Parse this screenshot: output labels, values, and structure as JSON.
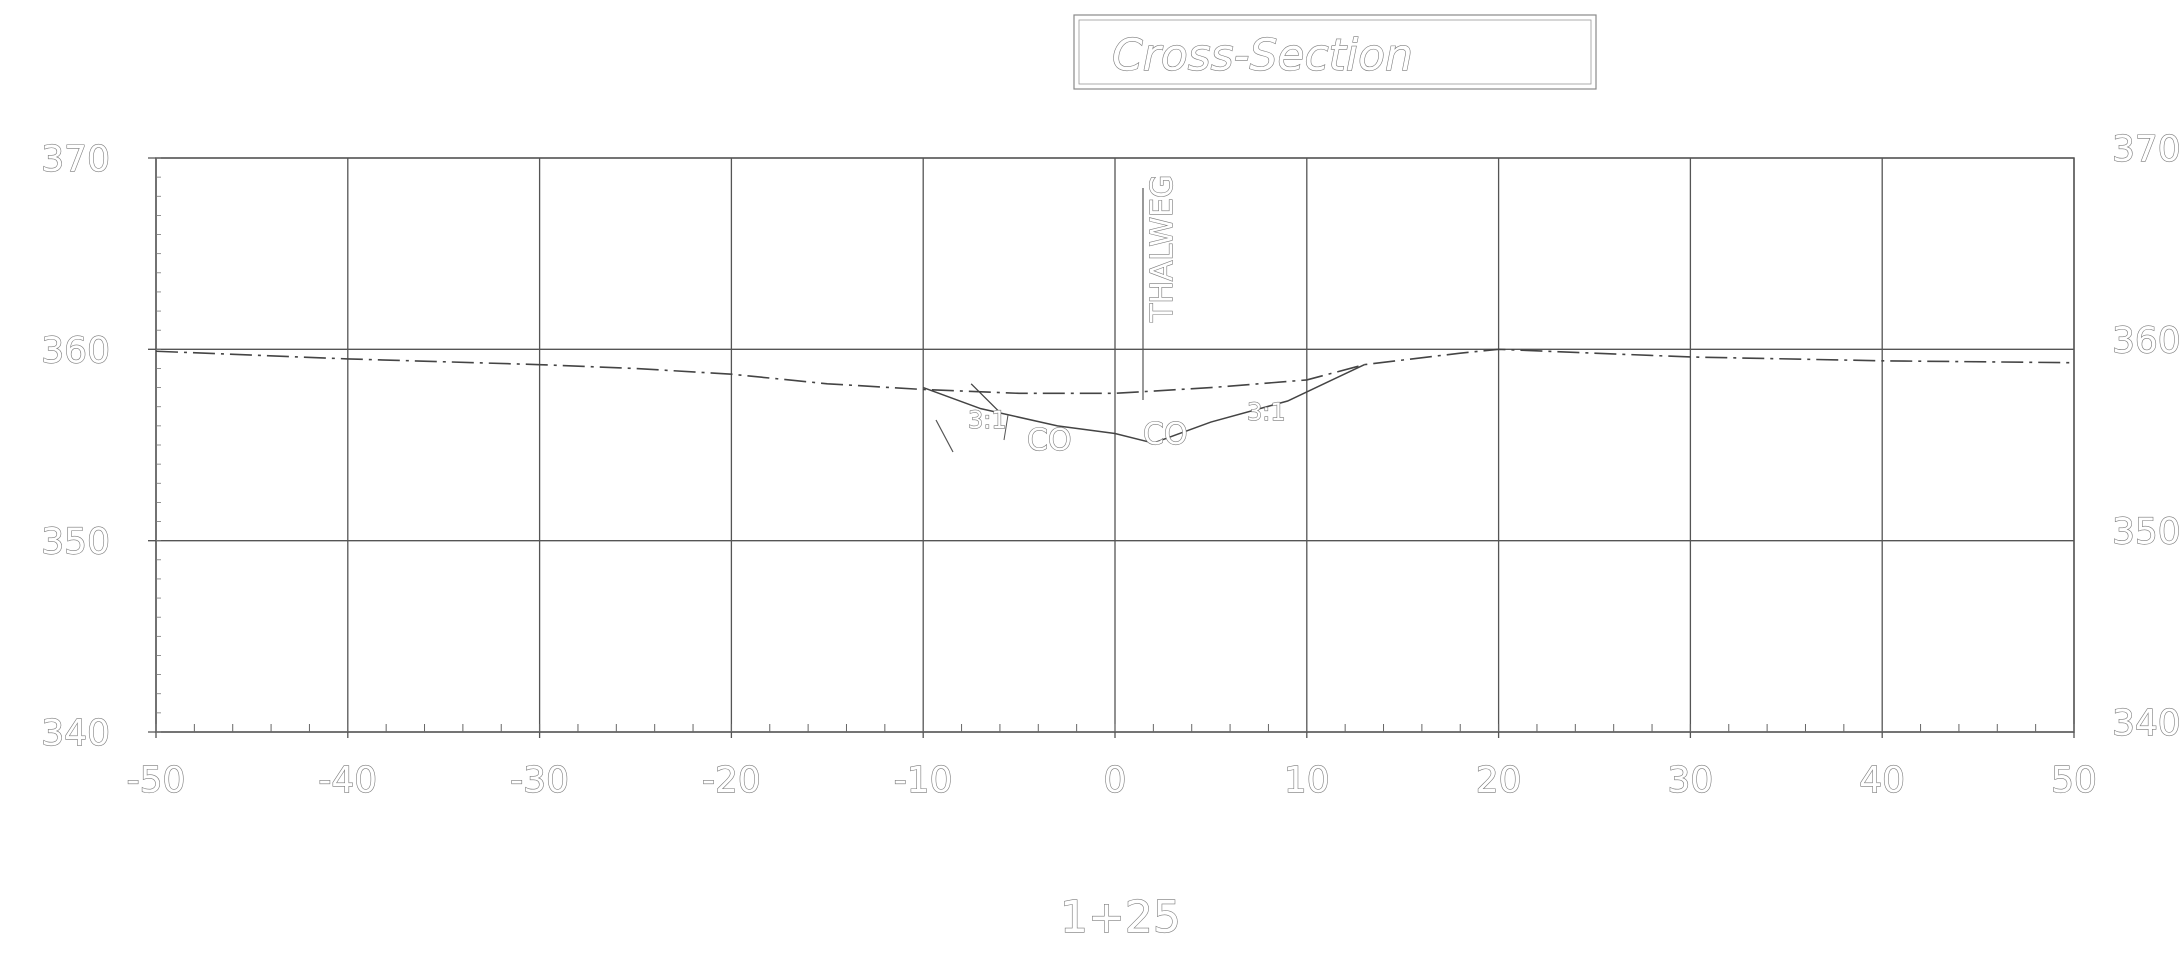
{
  "title": "Cross-Section",
  "station": "1+25",
  "thalweg_label": "THALWEG",
  "axes": {
    "x_ticks": [
      "-50",
      "-40",
      "-30",
      "-20",
      "-10",
      "0",
      "10",
      "20",
      "30",
      "40",
      "50"
    ],
    "y_ticks": [
      "340",
      "350",
      "360",
      "370"
    ],
    "xlim": [
      -50,
      50
    ],
    "ylim": [
      340,
      370
    ],
    "grid": true
  },
  "annotations": {
    "left_slope": "3:1",
    "right_slope": "3:1",
    "left_culvert": "CO",
    "right_culvert": "CO"
  },
  "colors": {
    "line": "#444444",
    "grid": "#555555",
    "background": "#ffffff"
  },
  "chart_data": {
    "type": "line",
    "x_range": [
      -50,
      50
    ],
    "y_range": [
      340,
      370
    ],
    "series": [
      {
        "x": [
          -50,
          -40,
          -30,
          -25,
          -20,
          -15,
          -10,
          -5,
          0,
          5,
          10,
          13,
          18,
          20,
          30,
          40,
          50
        ],
        "y": [
          359.9,
          359.5,
          359.2,
          359.0,
          358.7,
          358.2,
          357.9,
          357.7,
          357.7,
          358.0,
          358.4,
          359.2,
          359.8,
          360.0,
          359.6,
          359.4,
          359.3
        ]
      },
      {
        "x": [
          -10,
          -7,
          -3,
          0,
          2,
          5,
          9,
          13
        ],
        "y": [
          358.0,
          356.9,
          356.0,
          355.6,
          355.1,
          356.2,
          357.3,
          359.2
        ]
      },
      {
        "x": [
          -7.5,
          -6
        ],
        "y": [
          358.2,
          356.7
        ]
      }
    ]
  }
}
